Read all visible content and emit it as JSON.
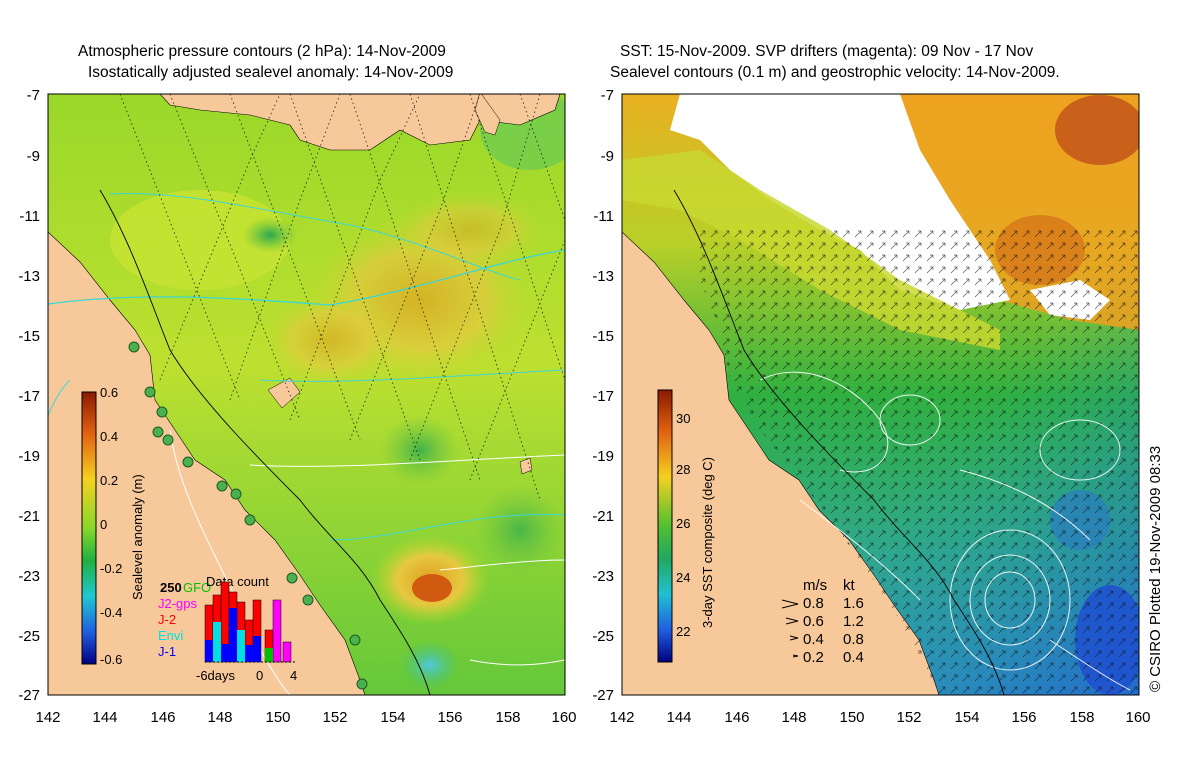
{
  "left_panel": {
    "title_line1": "Atmospheric pressure contours (2 hPa): 14-Nov-2009",
    "title_line2": "Isostatically adjusted sealevel anomaly: 14-Nov-2009",
    "colorbar": {
      "label": "Sealevel anomaly (m)",
      "ticks": [
        "0.6",
        "0.4",
        "0.2",
        "0",
        "-0.2",
        "-0.4",
        "-0.6"
      ]
    },
    "legend": {
      "count_label": "250",
      "entries": [
        {
          "name": "GFO",
          "color": "#00c000"
        },
        {
          "name": "J2-gps",
          "color": "#ff00ff"
        },
        {
          "name": "J-2",
          "color": "#ff0000"
        },
        {
          "name": "Envi",
          "color": "#00e0e0"
        },
        {
          "name": "J-1",
          "color": "#0000ff"
        }
      ],
      "histogram_title": "Data count",
      "histogram_xticks": [
        "-6days",
        "0",
        "4"
      ]
    }
  },
  "right_panel": {
    "title_line1": "SST: 15-Nov-2009. SVP drifters (magenta): 09 Nov - 17 Nov",
    "title_line2": "Sealevel contours (0.1 m) and geostrophic velocity: 14-Nov-2009.",
    "colorbar": {
      "label": "3-day SST composite (deg C)",
      "ticks": [
        "30",
        "28",
        "26",
        "24",
        "22"
      ]
    },
    "velocity_key": {
      "header_ms": "m/s",
      "header_kt": "kt",
      "rows": [
        {
          "ms": "0.8",
          "kt": "1.6"
        },
        {
          "ms": "0.6",
          "kt": "1.2"
        },
        {
          "ms": "0.4",
          "kt": "0.8"
        },
        {
          "ms": "0.2",
          "kt": "0.4"
        }
      ]
    }
  },
  "axes": {
    "lat_ticks": [
      "-7",
      "-9",
      "-11",
      "-13",
      "-15",
      "-17",
      "-19",
      "-21",
      "-23",
      "-25",
      "-27"
    ],
    "lon_ticks": [
      "142",
      "144",
      "146",
      "148",
      "150",
      "152",
      "154",
      "156",
      "158",
      "160"
    ]
  },
  "credit": "© CSIRO Plotted 19-Nov-2009 08:33",
  "colors": {
    "land": "#f7c99a",
    "ocean_green": "#7ed321",
    "sst_warm": "#f0a020",
    "contour_cyan": "#3dd6d6"
  }
}
